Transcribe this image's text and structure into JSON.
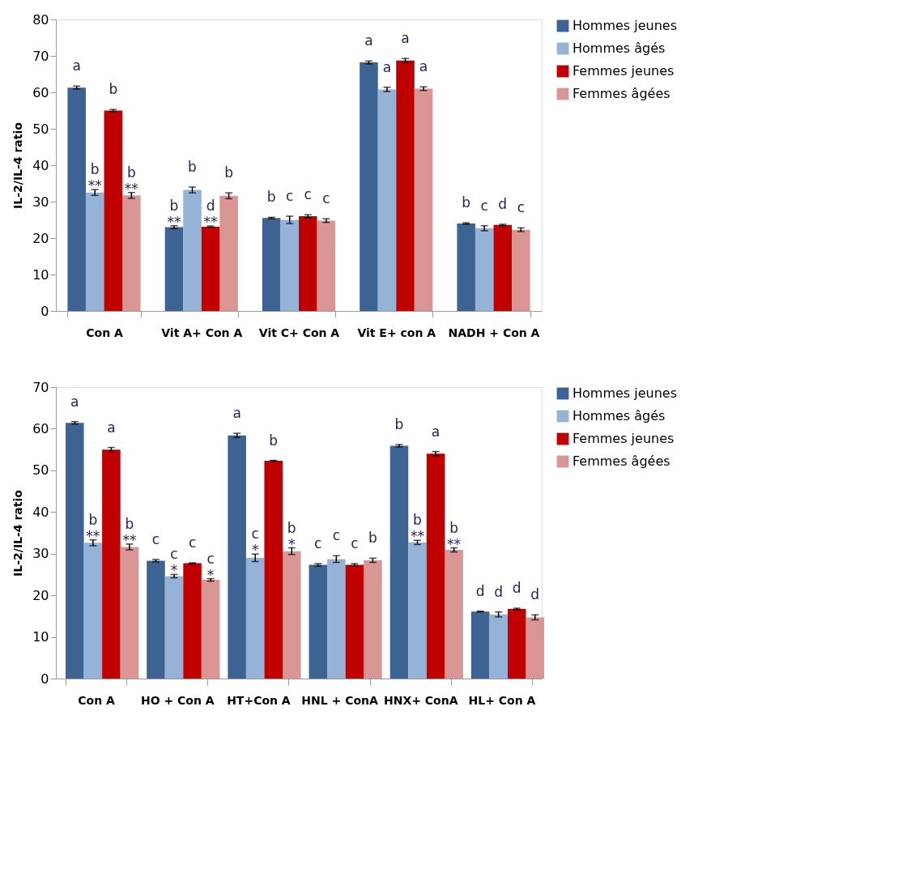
{
  "chart_data": [
    {
      "type": "bar",
      "ylabel": "IL-2/IL-4 ratio",
      "categories": [
        "Con A",
        "Vit A+ Con A",
        "Vit C+ Con A",
        "Vit E+ con A",
        "NADH + Con A"
      ],
      "ylim": [
        0,
        80
      ],
      "yticks": [
        0,
        10,
        20,
        30,
        40,
        50,
        60,
        70,
        80
      ],
      "grid": false,
      "legend": "top right",
      "series": [
        {
          "name": "Hommes jeunes",
          "color": "#3d6393",
          "values": [
            61.3,
            23,
            25.5,
            68.2,
            24
          ],
          "errors": [
            0.4,
            0.4,
            0.2,
            0.4,
            0.2
          ]
        },
        {
          "name": "Hommes âgés",
          "color": "#95b3d7",
          "values": [
            32.5,
            33.2,
            25,
            60.8,
            22.7
          ],
          "errors": [
            0.8,
            0.8,
            1.0,
            0.6,
            0.7
          ]
        },
        {
          "name": "Femmes jeunes",
          "color": "#c00000",
          "values": [
            55,
            23.1,
            26,
            68.7,
            23.6
          ],
          "errors": [
            0.3,
            0.2,
            0.4,
            0.6,
            0.2
          ]
        },
        {
          "name": "Femmes âgées",
          "color": "#d99694",
          "values": [
            31.7,
            31.6,
            24.8,
            61,
            22.3
          ],
          "errors": [
            0.8,
            0.8,
            0.5,
            0.5,
            0.5
          ]
        }
      ],
      "annotations": [
        "a",
        "b\n**",
        "b",
        "b\n**",
        "b\n**",
        "b",
        "d\n**",
        "b",
        "b",
        "c",
        "c",
        "c",
        "a",
        "a",
        "a",
        "a",
        "b",
        "c",
        "d",
        "c"
      ]
    },
    {
      "type": "bar",
      "ylabel": "IL-2/IL-4 ratio",
      "categories": [
        "Con A",
        "HO + Con A",
        "HT+Con A",
        "HNL + ConA",
        "HNX+ ConA",
        "HL+ Con A"
      ],
      "ylim": [
        0,
        70
      ],
      "yticks": [
        0,
        10,
        20,
        30,
        40,
        50,
        60,
        70
      ],
      "grid": false,
      "legend": "top right",
      "series": [
        {
          "name": "Hommes jeunes",
          "color": "#3d6393",
          "values": [
            61.4,
            28.3,
            58.4,
            27.3,
            55.9,
            16.1
          ],
          "errors": [
            0.3,
            0.3,
            0.5,
            0.3,
            0.3,
            0.1
          ]
        },
        {
          "name": "Hommes âgés",
          "color": "#95b3d7",
          "values": [
            32.6,
            24.6,
            29,
            28.7,
            32.7,
            15.4
          ],
          "errors": [
            0.7,
            0.4,
            0.9,
            0.8,
            0.5,
            0.6
          ]
        },
        {
          "name": "Femmes jeunes",
          "color": "#c00000",
          "values": [
            55,
            27.7,
            52.3,
            27.3,
            54,
            16.7
          ],
          "errors": [
            0.5,
            0.1,
            0.1,
            0.3,
            0.5,
            0.2
          ]
        },
        {
          "name": "Femmes âgées",
          "color": "#d99694",
          "values": [
            31.6,
            23.7,
            30.6,
            28.4,
            30.9,
            14.7
          ],
          "errors": [
            0.7,
            0.3,
            0.8,
            0.5,
            0.5,
            0.6
          ]
        }
      ],
      "annotations": [
        "a",
        "b\n**",
        "a",
        "b\n**",
        "c",
        "c\n*",
        "c",
        "c\n*",
        "a",
        "c\n*",
        "b",
        "b\n*",
        "c",
        "c",
        "c",
        "b",
        "b",
        "b\n**",
        "a",
        "b\n**",
        "d",
        "d",
        "d",
        "d"
      ]
    }
  ]
}
